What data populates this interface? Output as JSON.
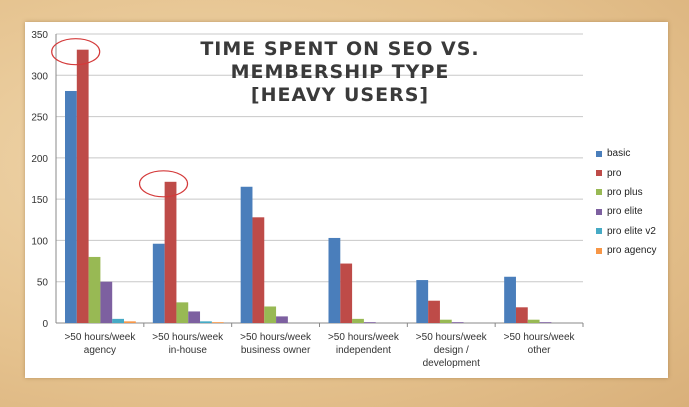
{
  "chart_data": {
    "type": "bar",
    "title": "Time spent on SEO vs. Membership type",
    "subtitle": "[Heavy Users]",
    "xlabel": "",
    "ylabel": "",
    "ylim": [
      0,
      350
    ],
    "yticks": [
      0,
      50,
      100,
      150,
      200,
      250,
      300,
      350
    ],
    "grid": true,
    "legend_position": "right",
    "categories": [
      ">50 hours/week agency",
      ">50 hours/week in-house",
      ">50 hours/week business owner",
      ">50 hours/week independent",
      ">50 hours/week design / development",
      ">50 hours/week other"
    ],
    "series": [
      {
        "name": "basic",
        "color": "#4a7ebb",
        "values": [
          281,
          96,
          165,
          103,
          52,
          56
        ]
      },
      {
        "name": "pro",
        "color": "#be4b48",
        "values": [
          331,
          171,
          128,
          72,
          27,
          19
        ]
      },
      {
        "name": "pro plus",
        "color": "#98b954",
        "values": [
          80,
          25,
          20,
          5,
          4,
          4
        ]
      },
      {
        "name": "pro elite",
        "color": "#7d60a0",
        "values": [
          50,
          14,
          8,
          1,
          1,
          1
        ]
      },
      {
        "name": "pro elite v2",
        "color": "#46aac5",
        "values": [
          5,
          2,
          0,
          0,
          0,
          0
        ]
      },
      {
        "name": "pro agency",
        "color": "#f79646",
        "values": [
          2,
          1,
          0,
          0,
          0,
          0
        ]
      }
    ],
    "highlighted": [
      {
        "category": ">50 hours/week agency",
        "series": "pro"
      },
      {
        "category": ">50 hours/week in-house",
        "series": "pro"
      }
    ]
  }
}
